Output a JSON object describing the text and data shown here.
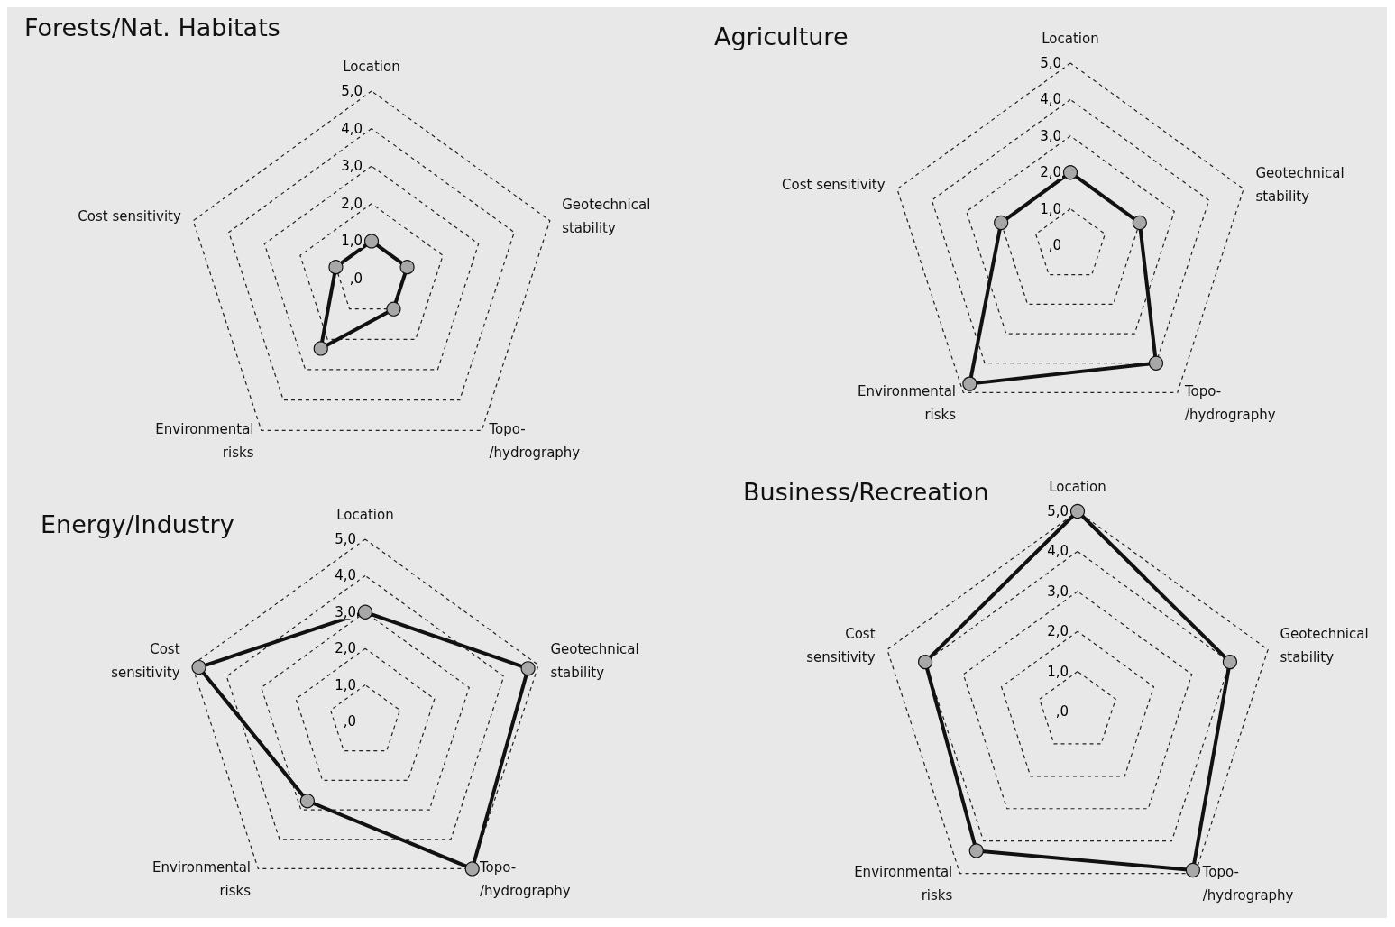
{
  "chart_data": [
    {
      "type": "radar",
      "title": "Forests/Nat. Habitats",
      "categories": [
        "Location",
        "Geotechnical\nstability",
        "Topo-\n/hydrography",
        "Environmental\nrisks",
        "Cost sensitivity"
      ],
      "ylim": [
        0,
        5
      ],
      "yticks": [
        {
          "value": 0,
          "label": ",0"
        },
        {
          "value": 1,
          "label": "1,0"
        },
        {
          "value": 2,
          "label": "2,0"
        },
        {
          "value": 3,
          "label": "3,0"
        },
        {
          "value": 4,
          "label": "4,0"
        },
        {
          "value": 5,
          "label": "5,0"
        }
      ],
      "grid": true,
      "marker": "circle",
      "line_style": "solid",
      "series": [
        {
          "color": "#111111",
          "values": [
            1.0,
            1.0,
            1.0,
            2.3,
            1.0
          ]
        }
      ]
    },
    {
      "type": "radar",
      "title": "Agriculture",
      "categories": [
        "Location",
        "Geotechnical\nstability",
        "Topo-\n/hydrography",
        "Environmental\nrisks",
        "Cost sensitivity"
      ],
      "ylim": [
        0,
        5
      ],
      "yticks": [
        {
          "value": 0,
          "label": ",0"
        },
        {
          "value": 1,
          "label": "1,0"
        },
        {
          "value": 2,
          "label": "2,0"
        },
        {
          "value": 3,
          "label": "3,0"
        },
        {
          "value": 4,
          "label": "4,0"
        },
        {
          "value": 5,
          "label": "5,0"
        }
      ],
      "grid": true,
      "marker": "circle",
      "line_style": "solid",
      "series": [
        {
          "color": "#111111",
          "values": [
            2.0,
            2.0,
            4.0,
            4.7,
            2.0
          ]
        }
      ]
    },
    {
      "type": "radar",
      "title": "Energy/Industry",
      "categories": [
        "Location",
        "Geotechnical\nstability",
        "Topo-\n/hydrography",
        "Environmental\nrisks",
        "Cost\nsensitivity"
      ],
      "ylim": [
        0,
        5
      ],
      "yticks": [
        {
          "value": 0,
          "label": ",0"
        },
        {
          "value": 1,
          "label": "1,0"
        },
        {
          "value": 2,
          "label": "2,0"
        },
        {
          "value": 3,
          "label": "3,0"
        },
        {
          "value": 4,
          "label": "4,0"
        },
        {
          "value": 5,
          "label": "5,0"
        }
      ],
      "grid": true,
      "marker": "circle",
      "line_style": "solid",
      "series": [
        {
          "color": "#111111",
          "values": [
            3.0,
            4.7,
            5.0,
            2.7,
            4.8
          ]
        }
      ]
    },
    {
      "type": "radar",
      "title": "Business/Recreation",
      "categories": [
        "Location",
        "Geotechnical\nstability",
        "Topo-\n/hydrography",
        "Environmental\nrisks",
        "Cost\nsensitivity"
      ],
      "ylim": [
        0,
        5
      ],
      "yticks": [
        {
          "value": 0,
          "label": ",0"
        },
        {
          "value": 1,
          "label": "1,0"
        },
        {
          "value": 2,
          "label": "2,0"
        },
        {
          "value": 3,
          "label": "3,0"
        },
        {
          "value": 4,
          "label": "4,0"
        },
        {
          "value": 5,
          "label": "5,0"
        }
      ],
      "grid": true,
      "marker": "circle",
      "line_style": "solid",
      "series": [
        {
          "color": "#111111",
          "values": [
            5.0,
            4.0,
            4.9,
            4.3,
            4.0
          ]
        }
      ]
    }
  ]
}
